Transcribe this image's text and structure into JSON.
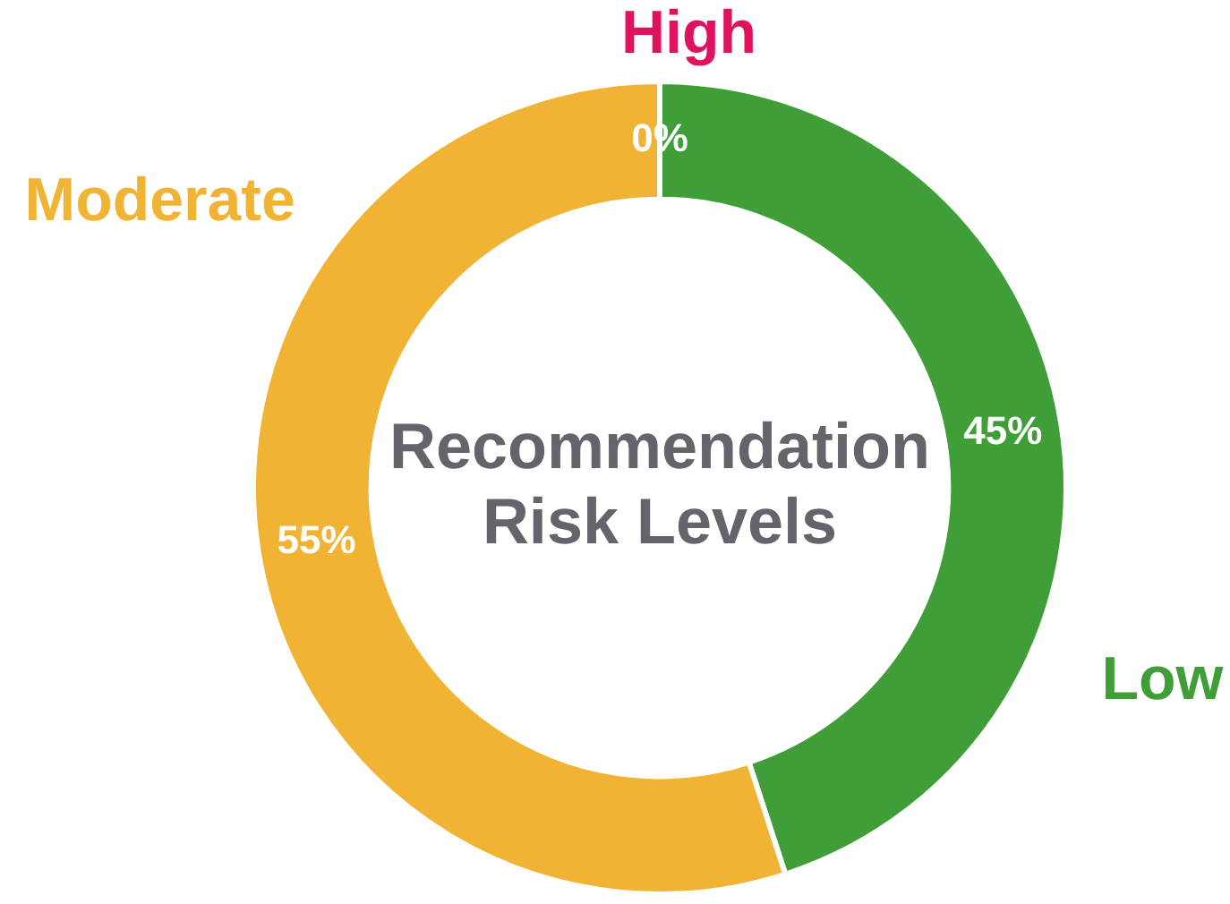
{
  "chart_data": {
    "type": "donut",
    "title": "Recommendation Risk Levels",
    "categories": [
      "High",
      "Low",
      "Moderate"
    ],
    "values": [
      0,
      45,
      55
    ],
    "colors": [
      "#e0115f",
      "#3f9e37",
      "#f0b334"
    ],
    "value_labels": [
      "0%",
      "45%",
      "55%"
    ],
    "legend": false
  }
}
